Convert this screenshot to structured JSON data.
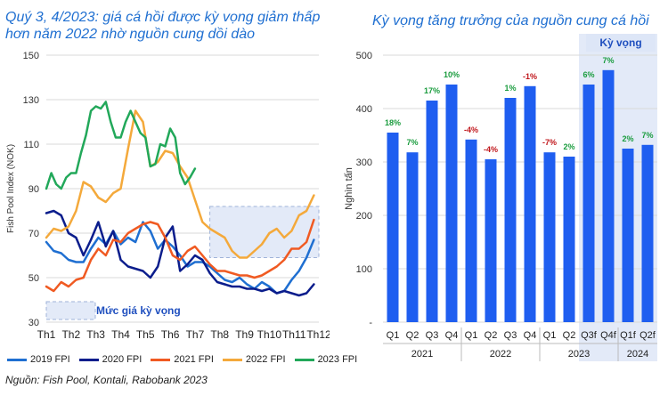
{
  "left_title": "Quý 3, 4/2023: giá cá hồi được kỳ vọng giảm thấp hơn năm 2022 nhờ nguồn cung dồi dào",
  "right_title": "Kỳ vọng tăng trưởng của nguồn cung cá hồi",
  "source": "Nguồn: Fish Pool, Kontali, Rabobank 2023",
  "chart_data": [
    {
      "type": "line",
      "title": "Quý 3, 4/2023: giá cá hồi được kỳ vọng giảm thấp hơn năm 2022 nhờ nguồn cung dồi dào",
      "ylabel": "Fish Pool Index (NOK)",
      "xlabel": "",
      "ylim": [
        30,
        150
      ],
      "yticks": [
        "30",
        "50",
        "70",
        "90",
        "110",
        "130",
        "150"
      ],
      "categories": [
        "Th1",
        "Th2",
        "Th3",
        "Th4",
        "Th5",
        "Th6",
        "Th7",
        "Th8",
        "Th9",
        "Th10",
        "Th11",
        "Th12"
      ],
      "legend_position": "bottom",
      "annotation": "Mức giá kỳ vọng",
      "expected_band": {
        "x_from": 7.6,
        "x_to": 12,
        "y_from": 59,
        "y_to": 82
      },
      "series": [
        {
          "name": "2019 FPI",
          "color": "#1f6fd1",
          "x": [
            1,
            1.3,
            1.6,
            1.9,
            2.2,
            2.5,
            2.8,
            3.1,
            3.4,
            3.7,
            4.0,
            4.3,
            4.6,
            4.9,
            5.2,
            5.5,
            5.8,
            6.1,
            6.4,
            6.7,
            7.0,
            7.3,
            7.6,
            7.9,
            8.2,
            8.5,
            8.8,
            9.1,
            9.4,
            9.7,
            10.0,
            10.3,
            10.6,
            10.9,
            11.2,
            11.5,
            11.8
          ],
          "values": [
            66,
            62,
            61,
            58,
            57,
            57,
            63,
            68,
            65,
            71,
            65,
            68,
            66,
            75,
            71,
            63,
            67,
            64,
            60,
            55,
            57,
            57,
            55,
            52,
            49,
            48,
            50,
            47,
            45,
            48,
            46,
            43,
            44,
            49,
            53,
            59,
            67
          ]
        },
        {
          "name": "2020 FPI",
          "color": "#0b1d8c",
          "x": [
            1,
            1.3,
            1.6,
            1.9,
            2.2,
            2.5,
            2.8,
            3.1,
            3.4,
            3.7,
            4.0,
            4.3,
            4.6,
            4.9,
            5.2,
            5.5,
            5.8,
            6.1,
            6.4,
            6.7,
            7.0,
            7.3,
            7.6,
            7.9,
            8.2,
            8.5,
            8.8,
            9.1,
            9.4,
            9.7,
            10.0,
            10.3,
            10.6,
            10.9,
            11.2,
            11.5,
            11.8
          ],
          "values": [
            79,
            80,
            78,
            70,
            68,
            60,
            67,
            75,
            64,
            71,
            58,
            55,
            54,
            53,
            50,
            55,
            68,
            73,
            53,
            56,
            60,
            58,
            52,
            48,
            47,
            46,
            46,
            45,
            45,
            44,
            45,
            43,
            44,
            43,
            42,
            43,
            47
          ]
        },
        {
          "name": "2021 FPI",
          "color": "#f05a22",
          "x": [
            1,
            1.3,
            1.6,
            1.9,
            2.2,
            2.5,
            2.8,
            3.1,
            3.4,
            3.7,
            4.0,
            4.3,
            4.6,
            4.9,
            5.2,
            5.5,
            5.8,
            6.1,
            6.4,
            6.7,
            7.0,
            7.3,
            7.6,
            7.9,
            8.2,
            8.5,
            8.8,
            9.1,
            9.4,
            9.7,
            10.0,
            10.3,
            10.6,
            10.9,
            11.2,
            11.5,
            11.8
          ],
          "values": [
            46,
            44,
            48,
            46,
            49,
            50,
            58,
            63,
            60,
            67,
            66,
            70,
            72,
            74,
            75,
            74,
            68,
            60,
            58,
            62,
            64,
            60,
            56,
            53,
            53,
            52,
            51,
            51,
            50,
            51,
            53,
            55,
            58,
            63,
            63,
            66,
            76
          ]
        },
        {
          "name": "2022 FPI",
          "color": "#f4a93b",
          "x": [
            1,
            1.3,
            1.6,
            1.9,
            2.2,
            2.5,
            2.8,
            3.1,
            3.4,
            3.7,
            4.0,
            4.3,
            4.6,
            4.9,
            5.2,
            5.5,
            5.8,
            6.1,
            6.4,
            6.7,
            7.0,
            7.3,
            7.6,
            7.9,
            8.2,
            8.5,
            8.8,
            9.1,
            9.4,
            9.7,
            10.0,
            10.3,
            10.6,
            10.9,
            11.2,
            11.5,
            11.8
          ],
          "values": [
            68,
            72,
            71,
            73,
            80,
            93,
            91,
            86,
            84,
            88,
            90,
            108,
            125,
            120,
            100,
            102,
            107,
            106,
            100,
            95,
            85,
            75,
            72,
            70,
            68,
            62,
            59,
            59,
            62,
            65,
            70,
            72,
            68,
            71,
            78,
            80,
            87
          ]
        },
        {
          "name": "2023 FPI",
          "color": "#22a85a",
          "x": [
            1,
            1.2,
            1.4,
            1.6,
            1.8,
            2.0,
            2.2,
            2.4,
            2.6,
            2.8,
            3.0,
            3.2,
            3.4,
            3.6,
            3.8,
            4.0,
            4.2,
            4.4,
            4.6,
            4.8,
            5.0,
            5.2,
            5.4,
            5.6,
            5.8,
            6.0,
            6.2,
            6.4,
            6.6,
            6.8,
            7.0
          ],
          "values": [
            90,
            97,
            92,
            90,
            95,
            97,
            97,
            106,
            114,
            125,
            127,
            126,
            129,
            120,
            113,
            113,
            120,
            125,
            120,
            115,
            113,
            100,
            101,
            110,
            109,
            117,
            113,
            97,
            92,
            95,
            99
          ]
        }
      ]
    },
    {
      "type": "bar",
      "title": "Kỳ vọng tăng trưởng của nguồn cung cá hồi",
      "ylabel": "Nghìn tấn",
      "ylim": [
        0,
        500
      ],
      "yticks": [
        "-",
        "100",
        "200",
        "300",
        "400",
        "500"
      ],
      "categories": [
        "Q1",
        "Q2",
        "Q3",
        "Q4",
        "Q1",
        "Q2",
        "Q3",
        "Q4",
        "Q1",
        "Q2",
        "Q3f",
        "Q4f",
        "Q1f",
        "Q2f"
      ],
      "groups": [
        {
          "label": "2021",
          "count": 4
        },
        {
          "label": "2022",
          "count": 4
        },
        {
          "label": "2023",
          "count": 4
        },
        {
          "label": "2024",
          "count": 2
        }
      ],
      "values": [
        355,
        318,
        415,
        445,
        342,
        305,
        420,
        442,
        318,
        310,
        445,
        472,
        325,
        332
      ],
      "growth_labels": [
        "18%",
        "7%",
        "17%",
        "10%",
        "-4%",
        "-4%",
        "1%",
        "-1%",
        "-7%",
        "2%",
        "6%",
        "7%",
        "2%",
        "7%"
      ],
      "growth_colors": [
        "#1a9c3e",
        "#1a9c3e",
        "#1a9c3e",
        "#1a9c3e",
        "#c0161b",
        "#c0161b",
        "#1a9c3e",
        "#c0161b",
        "#c0161b",
        "#1a9c3e",
        "#1a9c3e",
        "#1a9c3e",
        "#1a9c3e",
        "#1a9c3e"
      ],
      "bar_color": "#1f5ef0",
      "expected_label": "Kỳ vọng",
      "expected_from_index": 10
    }
  ],
  "colors": {
    "title": "#1f6fd1",
    "band": "#e3eaf8",
    "grid": "#d9d9d9"
  }
}
